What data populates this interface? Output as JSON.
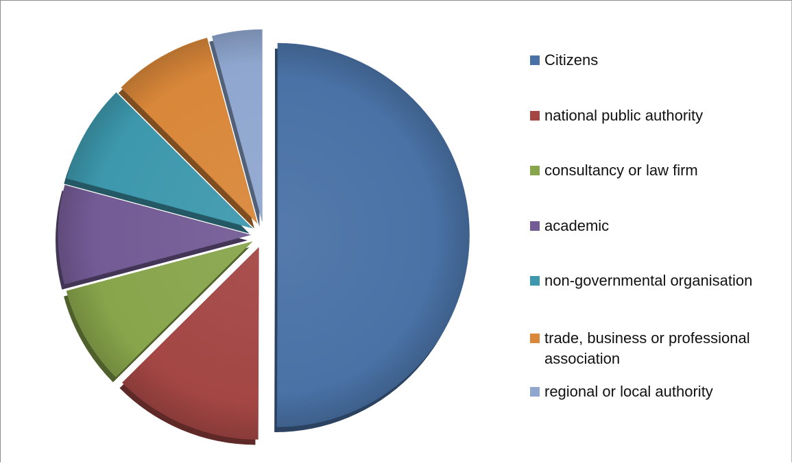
{
  "chart_data": {
    "type": "pie",
    "style": "3d-exploded",
    "legend_position": "right",
    "categories": [
      "Citizens",
      "national public authority",
      "consultancy or law firm",
      "academic",
      "non-governmental organisation",
      "trade, business or professional association",
      "regional or local authority"
    ],
    "values": [
      50,
      12.5,
      8.3,
      8.3,
      8.3,
      8.3,
      4.2
    ],
    "colors": [
      "#4a72a6",
      "#a34644",
      "#88a54b",
      "#735b95",
      "#3d98ad",
      "#d98739",
      "#8fa7cf"
    ],
    "title": ""
  }
}
